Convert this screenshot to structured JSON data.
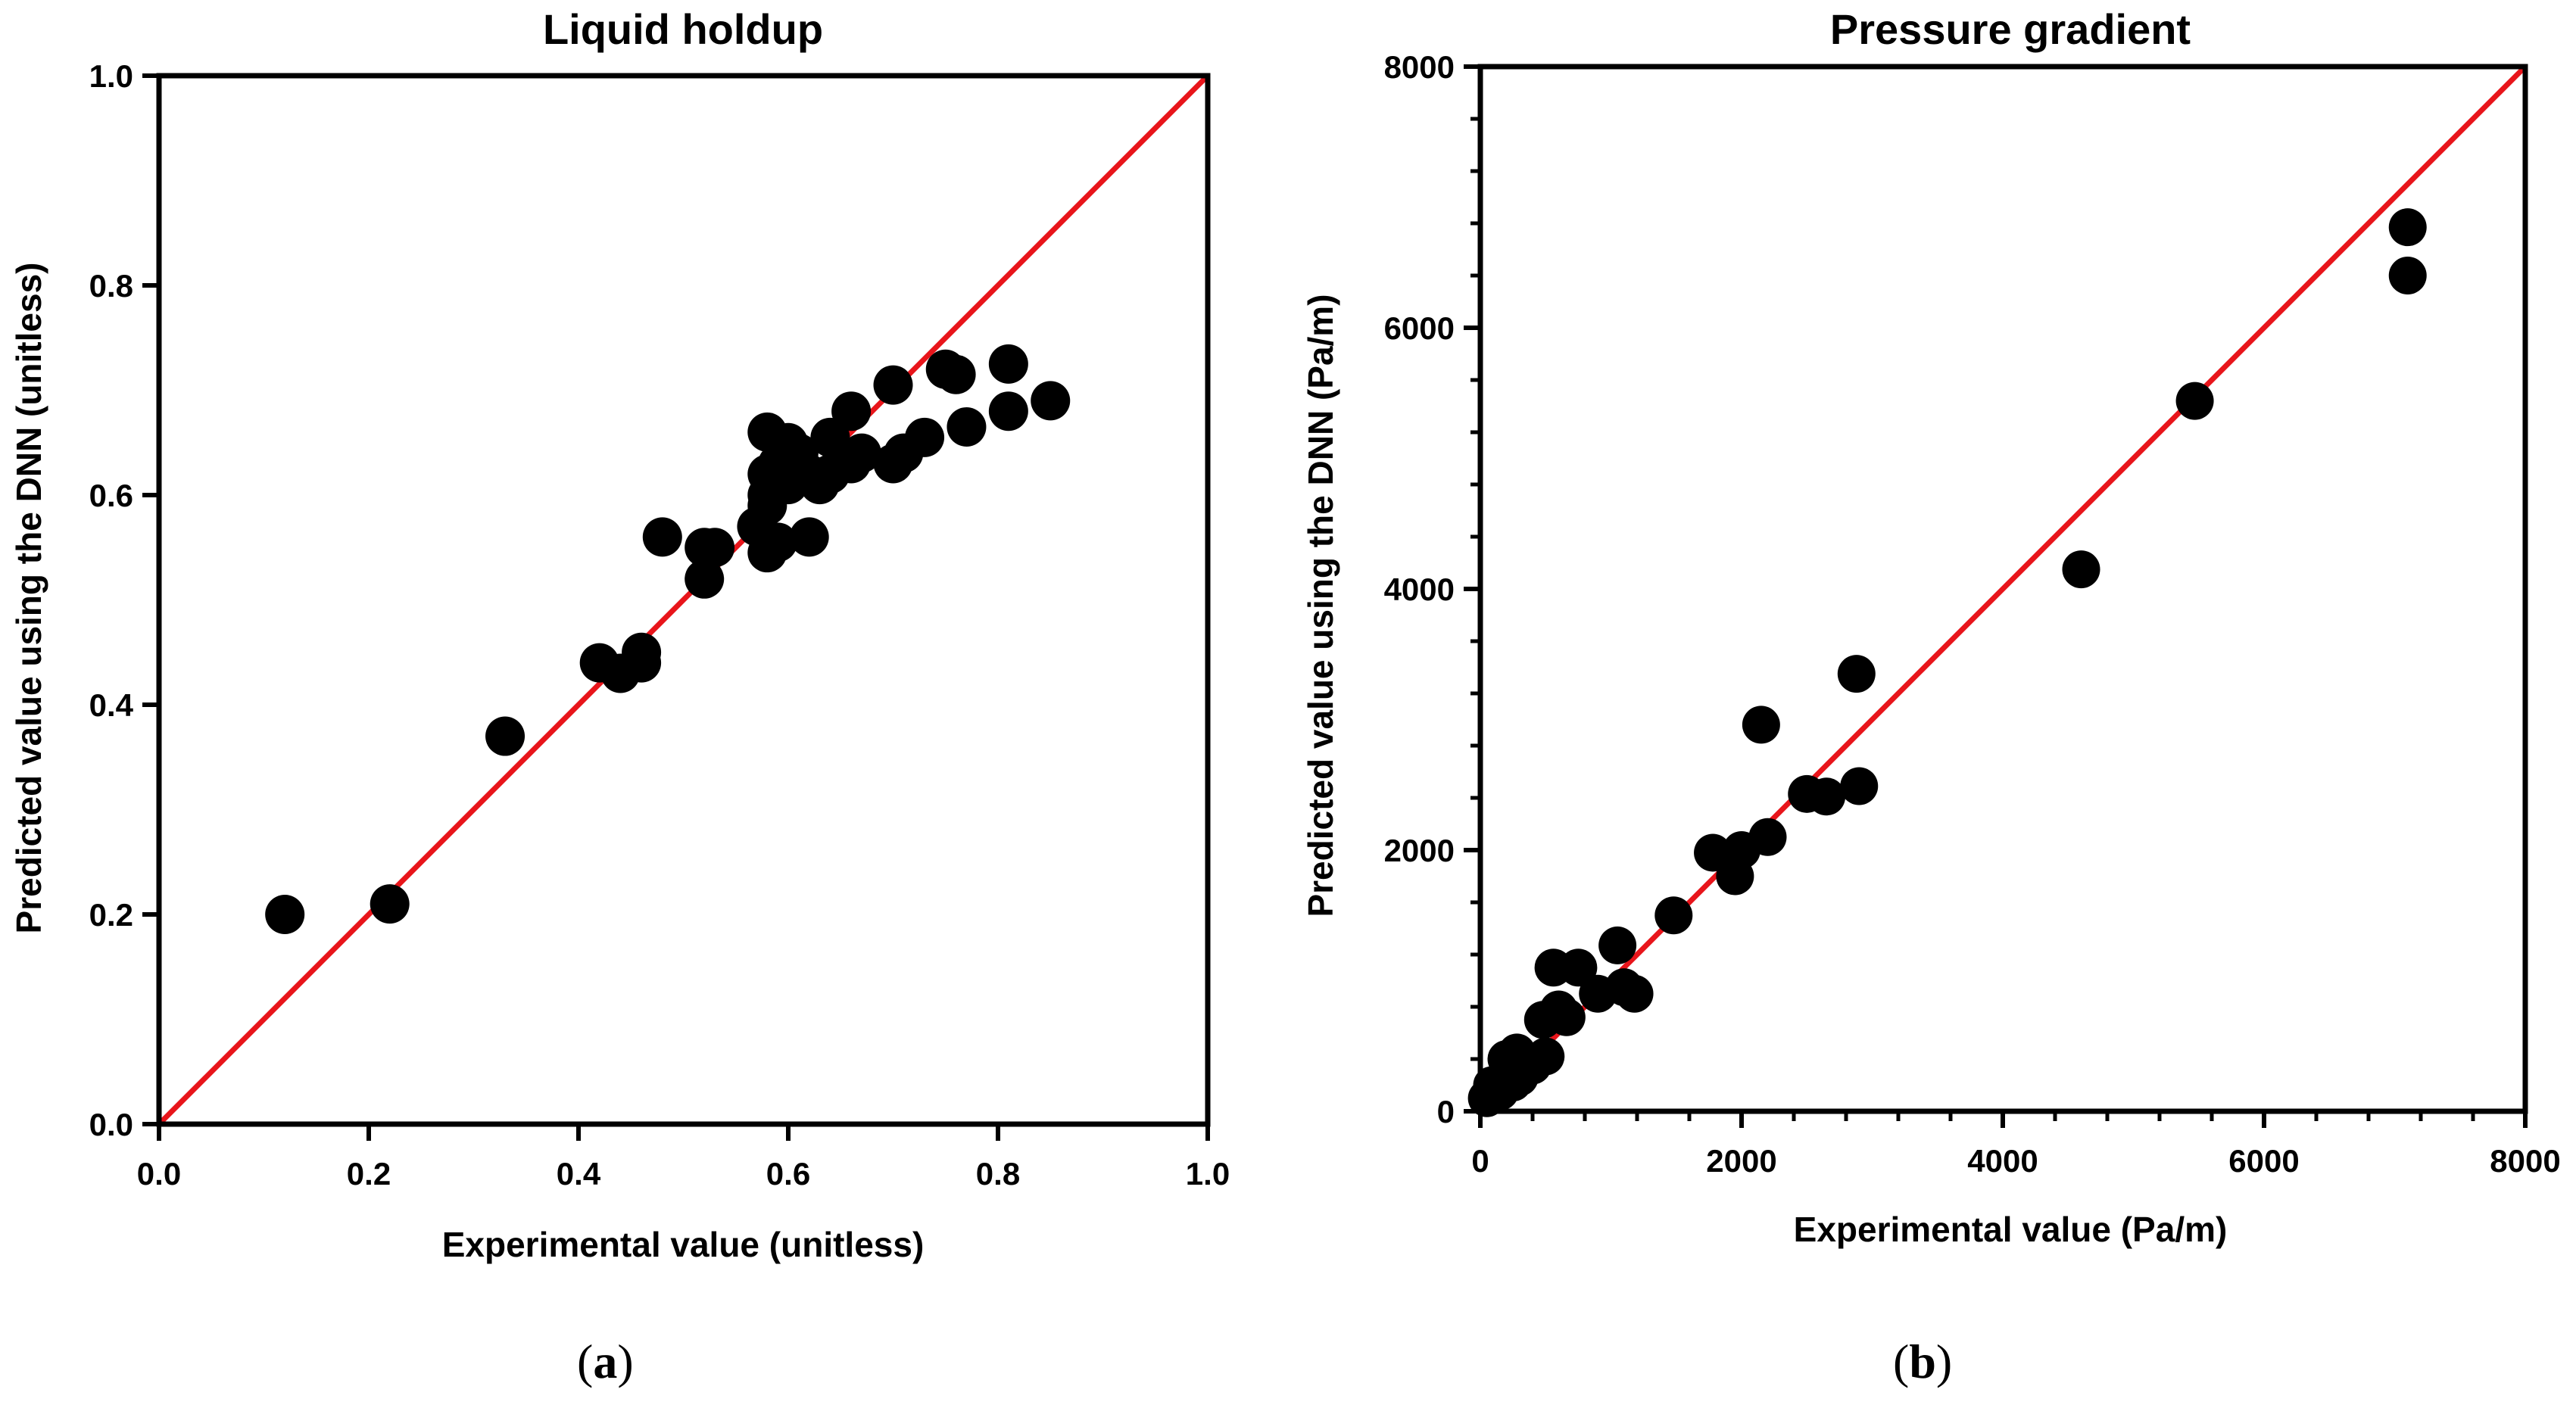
{
  "panels": [
    {
      "caption_open": "(",
      "caption_letter": "a",
      "caption_close": ")"
    },
    {
      "caption_open": "(",
      "caption_letter": "b",
      "caption_close": ")"
    }
  ],
  "colors": {
    "points": "#000000",
    "reference_line": "#e8151b",
    "axes": "#000000"
  },
  "chart_data": [
    {
      "type": "scatter",
      "title": "Liquid holdup",
      "xlabel": "Experimental value (unitless)",
      "ylabel": "Predicted value using the DNN (unitless)",
      "xlim": [
        0,
        1.0
      ],
      "ylim": [
        0,
        1.0
      ],
      "xticks": [
        "0.0",
        "0.2",
        "0.4",
        "0.6",
        "0.8",
        "1.0"
      ],
      "yticks": [
        "0.0",
        "0.2",
        "0.4",
        "0.6",
        "0.8",
        "1.0"
      ],
      "xtick_values": [
        0,
        0.2,
        0.4,
        0.6,
        0.8,
        1.0
      ],
      "ytick_values": [
        0,
        0.2,
        0.4,
        0.6,
        0.8,
        1.0
      ],
      "reference_line": {
        "from": [
          0,
          0
        ],
        "to": [
          1.0,
          1.0
        ],
        "label": "y = x"
      },
      "points": {
        "x": [
          0.12,
          0.22,
          0.33,
          0.42,
          0.44,
          0.46,
          0.46,
          0.48,
          0.52,
          0.52,
          0.53,
          0.57,
          0.58,
          0.58,
          0.58,
          0.58,
          0.58,
          0.59,
          0.59,
          0.6,
          0.6,
          0.6,
          0.61,
          0.62,
          0.62,
          0.63,
          0.64,
          0.64,
          0.65,
          0.66,
          0.66,
          0.67,
          0.7,
          0.7,
          0.71,
          0.73,
          0.75,
          0.76,
          0.77,
          0.81,
          0.81,
          0.85
        ],
        "y": [
          0.2,
          0.21,
          0.37,
          0.44,
          0.43,
          0.45,
          0.44,
          0.56,
          0.55,
          0.52,
          0.55,
          0.57,
          0.66,
          0.62,
          0.6,
          0.59,
          0.545,
          0.63,
          0.555,
          0.65,
          0.63,
          0.61,
          0.64,
          0.62,
          0.56,
          0.61,
          0.655,
          0.62,
          0.63,
          0.68,
          0.63,
          0.64,
          0.705,
          0.63,
          0.64,
          0.655,
          0.72,
          0.715,
          0.665,
          0.725,
          0.68,
          0.69
        ]
      }
    },
    {
      "type": "scatter",
      "title": "Pressure gradient",
      "xlabel": "Experimental value (Pa/m)",
      "ylabel": "Predicted value using the DNN (Pa/m)",
      "xlim": [
        0,
        8000
      ],
      "ylim": [
        0,
        8000
      ],
      "xticks": [
        "0",
        "2000",
        "4000",
        "6000",
        "8000"
      ],
      "yticks": [
        "0",
        "2000",
        "4000",
        "6000",
        "8000"
      ],
      "xtick_values": [
        0,
        2000,
        4000,
        6000,
        8000
      ],
      "ytick_values": [
        0,
        2000,
        4000,
        6000,
        8000
      ],
      "reference_line": {
        "from": [
          0,
          0
        ],
        "to": [
          8000,
          8000
        ],
        "label": "y = x"
      },
      "points": {
        "x": [
          50,
          90,
          150,
          200,
          250,
          280,
          300,
          400,
          480,
          500,
          560,
          600,
          660,
          750,
          900,
          1050,
          1100,
          1180,
          1480,
          1780,
          1950,
          2000,
          2150,
          2200,
          2500,
          2650,
          2880,
          2900,
          4600,
          5470,
          7100,
          7100
        ],
        "y": [
          100,
          200,
          150,
          400,
          220,
          450,
          260,
          350,
          700,
          420,
          1100,
          780,
          720,
          1100,
          900,
          1270,
          950,
          900,
          1500,
          1980,
          1800,
          2000,
          2960,
          2100,
          2430,
          2410,
          3350,
          2490,
          4150,
          5440,
          6770,
          6400
        ]
      }
    }
  ]
}
